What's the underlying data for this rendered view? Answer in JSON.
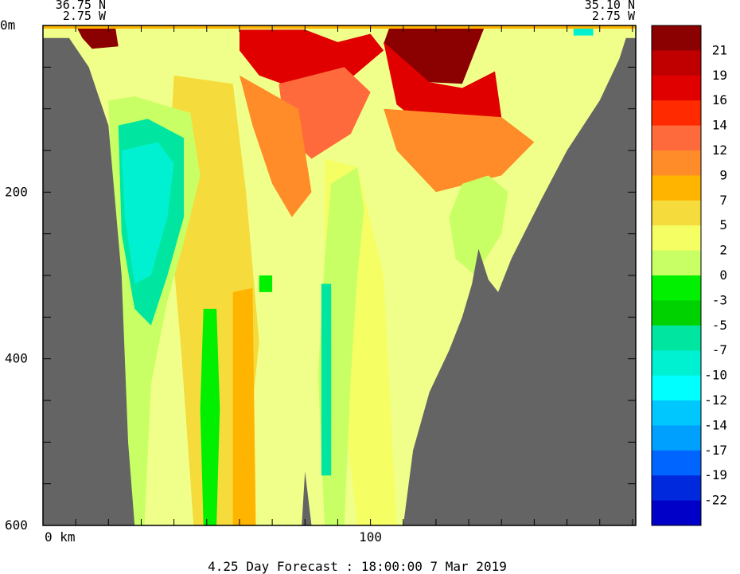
{
  "chart_data": {
    "type": "heatmap",
    "title": "4.25 Day Forecast : 18:00:00   7 Mar 2019",
    "start_point": {
      "lat": "36.75 N",
      "lon": "2.75 W"
    },
    "end_point": {
      "lat": "35.10 N",
      "lon": "2.75 W"
    },
    "xlabel": "km",
    "x_ticks": [
      {
        "value": 0,
        "label": "0 km"
      },
      {
        "value": 100,
        "label": "100"
      }
    ],
    "xlim": [
      0,
      181
    ],
    "ylabel": "m",
    "y_ticks": [
      {
        "value": 0,
        "label": "0m"
      },
      {
        "value": 200,
        "label": "200"
      },
      {
        "value": 400,
        "label": "400"
      },
      {
        "value": 600,
        "label": "600"
      }
    ],
    "ylim": [
      0,
      600
    ],
    "y_inverted": true,
    "colorbar": {
      "labels": [
        "21",
        "19",
        "16",
        "14",
        "12",
        "9",
        "7",
        "5",
        "2",
        "0",
        "-3",
        "-5",
        "-7",
        "-10",
        "-12",
        "-14",
        "-17",
        "-19",
        "-22"
      ],
      "colors": [
        "#8b0000",
        "#c00000",
        "#e00000",
        "#ff2a00",
        "#ff6a3c",
        "#ff8c28",
        "#ffb400",
        "#f5dc3c",
        "#f5ff64",
        "#c8ff64",
        "#00f000",
        "#00d200",
        "#00e6a0",
        "#00f0d2",
        "#00ffff",
        "#00c8ff",
        "#00a0ff",
        "#0064ff",
        "#0028dc",
        "#0000c8"
      ]
    },
    "bathymetry_km_m": [
      [
        0,
        15
      ],
      [
        8,
        15
      ],
      [
        14,
        50
      ],
      [
        20,
        120
      ],
      [
        24,
        300
      ],
      [
        26,
        500
      ],
      [
        28,
        600
      ],
      [
        79,
        600
      ],
      [
        80,
        535
      ],
      [
        82,
        600
      ],
      [
        110,
        600
      ],
      [
        113,
        510
      ],
      [
        118,
        440
      ],
      [
        124,
        390
      ],
      [
        128,
        350
      ],
      [
        131,
        310
      ],
      [
        133,
        268
      ],
      [
        136,
        305
      ],
      [
        139,
        320
      ],
      [
        143,
        280
      ],
      [
        152,
        210
      ],
      [
        160,
        150
      ],
      [
        170,
        90
      ],
      [
        176,
        40
      ],
      [
        178,
        15
      ],
      [
        181,
        15
      ]
    ],
    "regions": [
      {
        "value": 21,
        "poly": [
          [
            10,
            0
          ],
          [
            22,
            0
          ],
          [
            23,
            25
          ],
          [
            15,
            28
          ],
          [
            12,
            15
          ]
        ]
      },
      {
        "value": 21,
        "poly": [
          [
            106,
            0
          ],
          [
            135,
            0
          ],
          [
            132,
            30
          ],
          [
            128,
            70
          ],
          [
            118,
            68
          ],
          [
            108,
            50
          ],
          [
            104,
            22
          ]
        ]
      },
      {
        "value": 16,
        "poly": [
          [
            60,
            5
          ],
          [
            80,
            5
          ],
          [
            90,
            20
          ],
          [
            100,
            10
          ],
          [
            104,
            30
          ],
          [
            95,
            60
          ],
          [
            80,
            80
          ],
          [
            66,
            60
          ],
          [
            60,
            30
          ]
        ]
      },
      {
        "value": 16,
        "poly": [
          [
            104,
            20
          ],
          [
            118,
            68
          ],
          [
            128,
            75
          ],
          [
            138,
            55
          ],
          [
            140,
            110
          ],
          [
            130,
            130
          ],
          [
            116,
            120
          ],
          [
            108,
            95
          ]
        ]
      },
      {
        "value": 12,
        "poly": [
          [
            72,
            70
          ],
          [
            92,
            50
          ],
          [
            100,
            80
          ],
          [
            94,
            130
          ],
          [
            82,
            160
          ],
          [
            74,
            130
          ]
        ]
      },
      {
        "value": 9,
        "poly": [
          [
            60,
            60
          ],
          [
            78,
            100
          ],
          [
            82,
            200
          ],
          [
            76,
            230
          ],
          [
            70,
            190
          ],
          [
            64,
            120
          ]
        ]
      },
      {
        "value": 9,
        "poly": [
          [
            104,
            100
          ],
          [
            140,
            110
          ],
          [
            150,
            140
          ],
          [
            140,
            180
          ],
          [
            120,
            200
          ],
          [
            108,
            150
          ]
        ]
      },
      {
        "value": 5,
        "poly": [
          [
            40,
            60
          ],
          [
            58,
            70
          ],
          [
            62,
            200
          ],
          [
            66,
            380
          ],
          [
            60,
            600
          ],
          [
            46,
            600
          ],
          [
            42,
            380
          ],
          [
            38,
            200
          ]
        ]
      },
      {
        "value": 2,
        "poly": [
          [
            86,
            160
          ],
          [
            96,
            170
          ],
          [
            104,
            300
          ],
          [
            108,
            600
          ],
          [
            96,
            600
          ],
          [
            90,
            400
          ],
          [
            86,
            250
          ]
        ]
      },
      {
        "value": 0,
        "poly": [
          [
            20,
            90
          ],
          [
            28,
            85
          ],
          [
            45,
            105
          ],
          [
            48,
            180
          ],
          [
            43,
            260
          ],
          [
            38,
            330
          ],
          [
            33,
            430
          ],
          [
            31,
            600
          ],
          [
            26,
            600
          ],
          [
            22,
            300
          ]
        ]
      },
      {
        "value": 0,
        "poly": [
          [
            88,
            190
          ],
          [
            96,
            170
          ],
          [
            98,
            220
          ],
          [
            96,
            300
          ],
          [
            94,
            420
          ],
          [
            92,
            600
          ],
          [
            86,
            600
          ],
          [
            84,
            420
          ],
          [
            86,
            280
          ]
        ]
      },
      {
        "value": 0,
        "poly": [
          [
            128,
            190
          ],
          [
            136,
            180
          ],
          [
            142,
            200
          ],
          [
            140,
            250
          ],
          [
            132,
            300
          ],
          [
            126,
            280
          ],
          [
            124,
            230
          ]
        ]
      },
      {
        "value": -3,
        "poly": [
          [
            49,
            340
          ],
          [
            53,
            340
          ],
          [
            54,
            460
          ],
          [
            53,
            600
          ],
          [
            49,
            600
          ],
          [
            48,
            460
          ]
        ]
      },
      {
        "value": -3,
        "poly": [
          [
            66,
            300
          ],
          [
            70,
            300
          ],
          [
            70,
            320
          ],
          [
            66,
            320
          ]
        ]
      },
      {
        "value": -7,
        "poly": [
          [
            23,
            120
          ],
          [
            32,
            112
          ],
          [
            43,
            135
          ],
          [
            43,
            230
          ],
          [
            38,
            300
          ],
          [
            33,
            360
          ],
          [
            28,
            340
          ],
          [
            24,
            250
          ]
        ]
      },
      {
        "value": -10,
        "poly": [
          [
            24,
            150
          ],
          [
            35,
            140
          ],
          [
            40,
            165
          ],
          [
            38,
            230
          ],
          [
            33,
            300
          ],
          [
            28,
            310
          ],
          [
            25,
            230
          ]
        ]
      },
      {
        "value": -10,
        "poly": [
          [
            162,
            2
          ],
          [
            168,
            2
          ],
          [
            168,
            12
          ],
          [
            162,
            12
          ]
        ]
      },
      {
        "value": 7,
        "poly": [
          [
            58,
            320
          ],
          [
            64,
            315
          ],
          [
            65,
            600
          ],
          [
            58,
            600
          ]
        ]
      },
      {
        "value": -7,
        "poly": [
          [
            85,
            310
          ],
          [
            88,
            310
          ],
          [
            88,
            540
          ],
          [
            85,
            540
          ]
        ]
      }
    ]
  }
}
